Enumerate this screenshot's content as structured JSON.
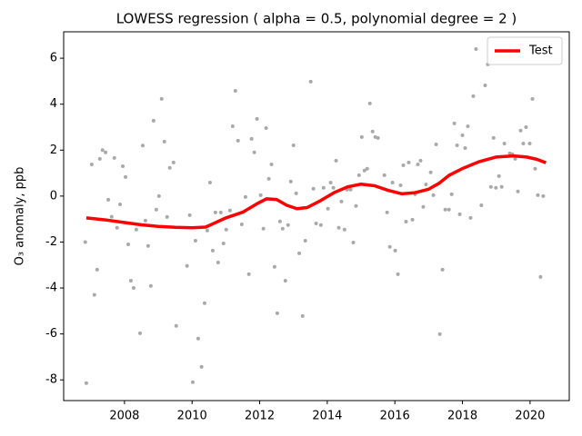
{
  "chart_data": {
    "type": "scatter",
    "title": "LOWESS regression ( alpha = 0.5, polynomial degree = 2 )",
    "ylabel": "O₃ anomaly, ppb",
    "xlim": [
      2006.2,
      2021.16
    ],
    "xticks": [
      2008,
      2010,
      2012,
      2014,
      2016,
      2018,
      2020
    ],
    "ylim": [
      -8.9,
      7.15
    ],
    "yticks": [
      -8,
      -6,
      -4,
      -2,
      0,
      2,
      4,
      6
    ],
    "legend": "upper right",
    "series": [
      {
        "type": "scatter",
        "color": "#a9a9a9",
        "x": [
          2006.87,
          2006.84,
          2007.03,
          2007.11,
          2007.19,
          2007.27,
          2007.35,
          2007.44,
          2007.52,
          2007.62,
          2007.7,
          2007.78,
          2007.87,
          2007.95,
          2008.03,
          2008.11,
          2008.19,
          2008.27,
          2008.35,
          2008.46,
          2008.54,
          2008.62,
          2008.7,
          2008.78,
          2008.86,
          2008.94,
          2009.02,
          2009.1,
          2009.18,
          2009.26,
          2009.34,
          2009.45,
          2009.53,
          2009.85,
          2009.93,
          2010.02,
          2010.1,
          2010.18,
          2010.28,
          2010.37,
          2010.45,
          2010.53,
          2010.61,
          2010.69,
          2010.77,
          2010.85,
          2010.93,
          2011.01,
          2011.12,
          2011.2,
          2011.28,
          2011.36,
          2011.47,
          2011.58,
          2011.68,
          2011.76,
          2011.84,
          2011.92,
          2012.03,
          2012.11,
          2012.19,
          2012.27,
          2012.35,
          2012.44,
          2012.52,
          2012.6,
          2012.68,
          2012.76,
          2012.84,
          2012.92,
          2013.0,
          2013.08,
          2013.17,
          2013.27,
          2013.35,
          2013.51,
          2013.59,
          2013.67,
          2013.81,
          2013.89,
          2014.02,
          2014.1,
          2014.18,
          2014.26,
          2014.34,
          2014.42,
          2014.51,
          2014.59,
          2014.69,
          2014.77,
          2014.85,
          2014.94,
          2015.02,
          2015.1,
          2015.18,
          2015.26,
          2015.34,
          2015.42,
          2015.5,
          2015.69,
          2015.77,
          2015.85,
          2015.93,
          2016.01,
          2016.09,
          2016.17,
          2016.25,
          2016.33,
          2016.41,
          2016.52,
          2016.6,
          2016.68,
          2016.76,
          2016.84,
          2016.92,
          2017.06,
          2017.14,
          2017.22,
          2017.33,
          2017.41,
          2017.49,
          2017.6,
          2017.68,
          2017.76,
          2017.84,
          2017.92,
          2018.0,
          2018.08,
          2018.16,
          2018.24,
          2018.32,
          2018.4,
          2018.56,
          2018.67,
          2018.75,
          2018.84,
          2018.92,
          2018.99,
          2019.08,
          2019.16,
          2019.24,
          2019.32,
          2019.4,
          2019.48,
          2019.56,
          2019.64,
          2019.72,
          2019.8,
          2019.88,
          2019.99,
          2020.07,
          2020.15,
          2020.23,
          2020.31,
          2020.39
        ],
        "values": [
          -8.14,
          -2.0,
          1.38,
          -4.3,
          -3.2,
          1.62,
          2.0,
          1.9,
          -0.16,
          -0.9,
          1.66,
          -1.38,
          -0.36,
          1.3,
          0.83,
          -2.1,
          -3.68,
          -4.0,
          -1.46,
          -5.97,
          2.2,
          -1.07,
          -2.17,
          -3.91,
          3.28,
          -0.59,
          0.0,
          4.23,
          2.37,
          -0.91,
          1.23,
          1.46,
          -5.65,
          -3.04,
          -0.83,
          -8.1,
          -1.94,
          -6.2,
          -7.43,
          -4.66,
          -1.5,
          0.59,
          -2.37,
          -0.71,
          -2.89,
          -0.71,
          -2.06,
          -1.46,
          -0.63,
          3.04,
          4.58,
          2.41,
          -1.23,
          -0.04,
          -3.4,
          2.49,
          1.9,
          3.36,
          0.04,
          -1.42,
          2.96,
          0.75,
          1.38,
          -3.08,
          -5.1,
          -1.1,
          -1.42,
          -3.68,
          -1.26,
          0.63,
          2.21,
          0.12,
          -2.49,
          -5.22,
          -1.94,
          4.98,
          0.32,
          -1.19,
          -1.26,
          0.36,
          -0.55,
          0.59,
          0.36,
          1.54,
          -1.38,
          -0.24,
          -1.46,
          0.28,
          0.28,
          -2.02,
          -0.43,
          0.91,
          2.57,
          1.11,
          1.19,
          4.03,
          2.81,
          2.57,
          2.53,
          0.91,
          -0.71,
          -2.21,
          0.59,
          -2.37,
          -3.4,
          0.47,
          1.34,
          -1.11,
          1.46,
          -1.03,
          0.08,
          1.38,
          1.54,
          -0.47,
          0.51,
          1.03,
          0.04,
          2.25,
          -6.01,
          -3.2,
          -0.59,
          -0.59,
          0.08,
          3.16,
          2.21,
          -0.79,
          2.65,
          2.09,
          3.04,
          -0.95,
          4.35,
          6.4,
          -0.4,
          4.82,
          5.73,
          0.4,
          2.53,
          0.36,
          0.87,
          0.4,
          2.29,
          5.85,
          1.86,
          1.82,
          1.62,
          0.2,
          2.85,
          2.29,
          3.0,
          2.29,
          4.23,
          1.19,
          0.04,
          -3.52,
          0.0
        ]
      },
      {
        "type": "line",
        "name": "Test",
        "color": "#ff0000",
        "x": [
          2006.87,
          2007.5,
          2008,
          2008.5,
          2009,
          2009.5,
          2010,
          2010.4,
          2010.7,
          2011,
          2011.5,
          2011.9,
          2012.2,
          2012.5,
          2012.8,
          2013.1,
          2013.4,
          2013.8,
          2014.2,
          2014.6,
          2015,
          2015.4,
          2015.8,
          2016.2,
          2016.6,
          2017,
          2017.3,
          2017.6,
          2018,
          2018.5,
          2019,
          2019.5,
          2019.9,
          2020.2,
          2020.47
        ],
        "values": [
          -0.95,
          -1.05,
          -1.15,
          -1.25,
          -1.32,
          -1.36,
          -1.38,
          -1.35,
          -1.15,
          -0.95,
          -0.7,
          -0.35,
          -0.12,
          -0.15,
          -0.4,
          -0.55,
          -0.5,
          -0.2,
          0.15,
          0.4,
          0.52,
          0.45,
          0.25,
          0.1,
          0.15,
          0.3,
          0.55,
          0.9,
          1.2,
          1.5,
          1.7,
          1.75,
          1.7,
          1.6,
          1.45
        ]
      }
    ]
  }
}
